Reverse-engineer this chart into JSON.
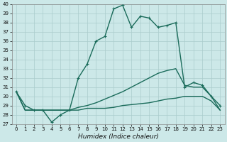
{
  "xlabel": "Humidex (Indice chaleur)",
  "background_color": "#cce8e8",
  "grid_color": "#aacccc",
  "line_color": "#1a6b5a",
  "xlim": [
    -0.5,
    23.5
  ],
  "ylim": [
    27,
    40
  ],
  "yticks": [
    27,
    28,
    29,
    30,
    31,
    32,
    33,
    34,
    35,
    36,
    37,
    38,
    39,
    40
  ],
  "xticks": [
    0,
    1,
    2,
    3,
    4,
    5,
    6,
    7,
    8,
    9,
    10,
    11,
    12,
    13,
    14,
    15,
    16,
    17,
    18,
    19,
    20,
    21,
    22,
    23
  ],
  "humidex_main": [
    30.5,
    29.0,
    28.5,
    28.5,
    27.2,
    28.0,
    28.5,
    32.0,
    33.5,
    36.0,
    36.5,
    39.5,
    39.9,
    37.5,
    38.7,
    38.5,
    37.5,
    37.7,
    38.0,
    31.0,
    31.5,
    31.2,
    30.0,
    29.0
  ],
  "humidex_low": [
    30.5,
    28.5,
    28.5,
    28.5,
    28.5,
    28.5,
    28.5,
    28.5,
    28.7,
    28.7,
    28.7,
    28.8,
    29.0,
    29.1,
    29.2,
    29.3,
    29.5,
    29.7,
    29.8,
    30.0,
    30.0,
    30.0,
    29.5,
    28.5
  ],
  "humidex_high": [
    30.5,
    28.5,
    28.5,
    28.5,
    28.5,
    28.5,
    28.5,
    28.8,
    29.0,
    29.3,
    29.7,
    30.1,
    30.5,
    31.0,
    31.5,
    32.0,
    32.5,
    32.8,
    33.0,
    31.2,
    31.0,
    31.0,
    30.0,
    28.5
  ],
  "ylabel_fontsize": 5.5,
  "xlabel_fontsize": 6.5,
  "tick_fontsize": 5,
  "line_width": 1.0
}
